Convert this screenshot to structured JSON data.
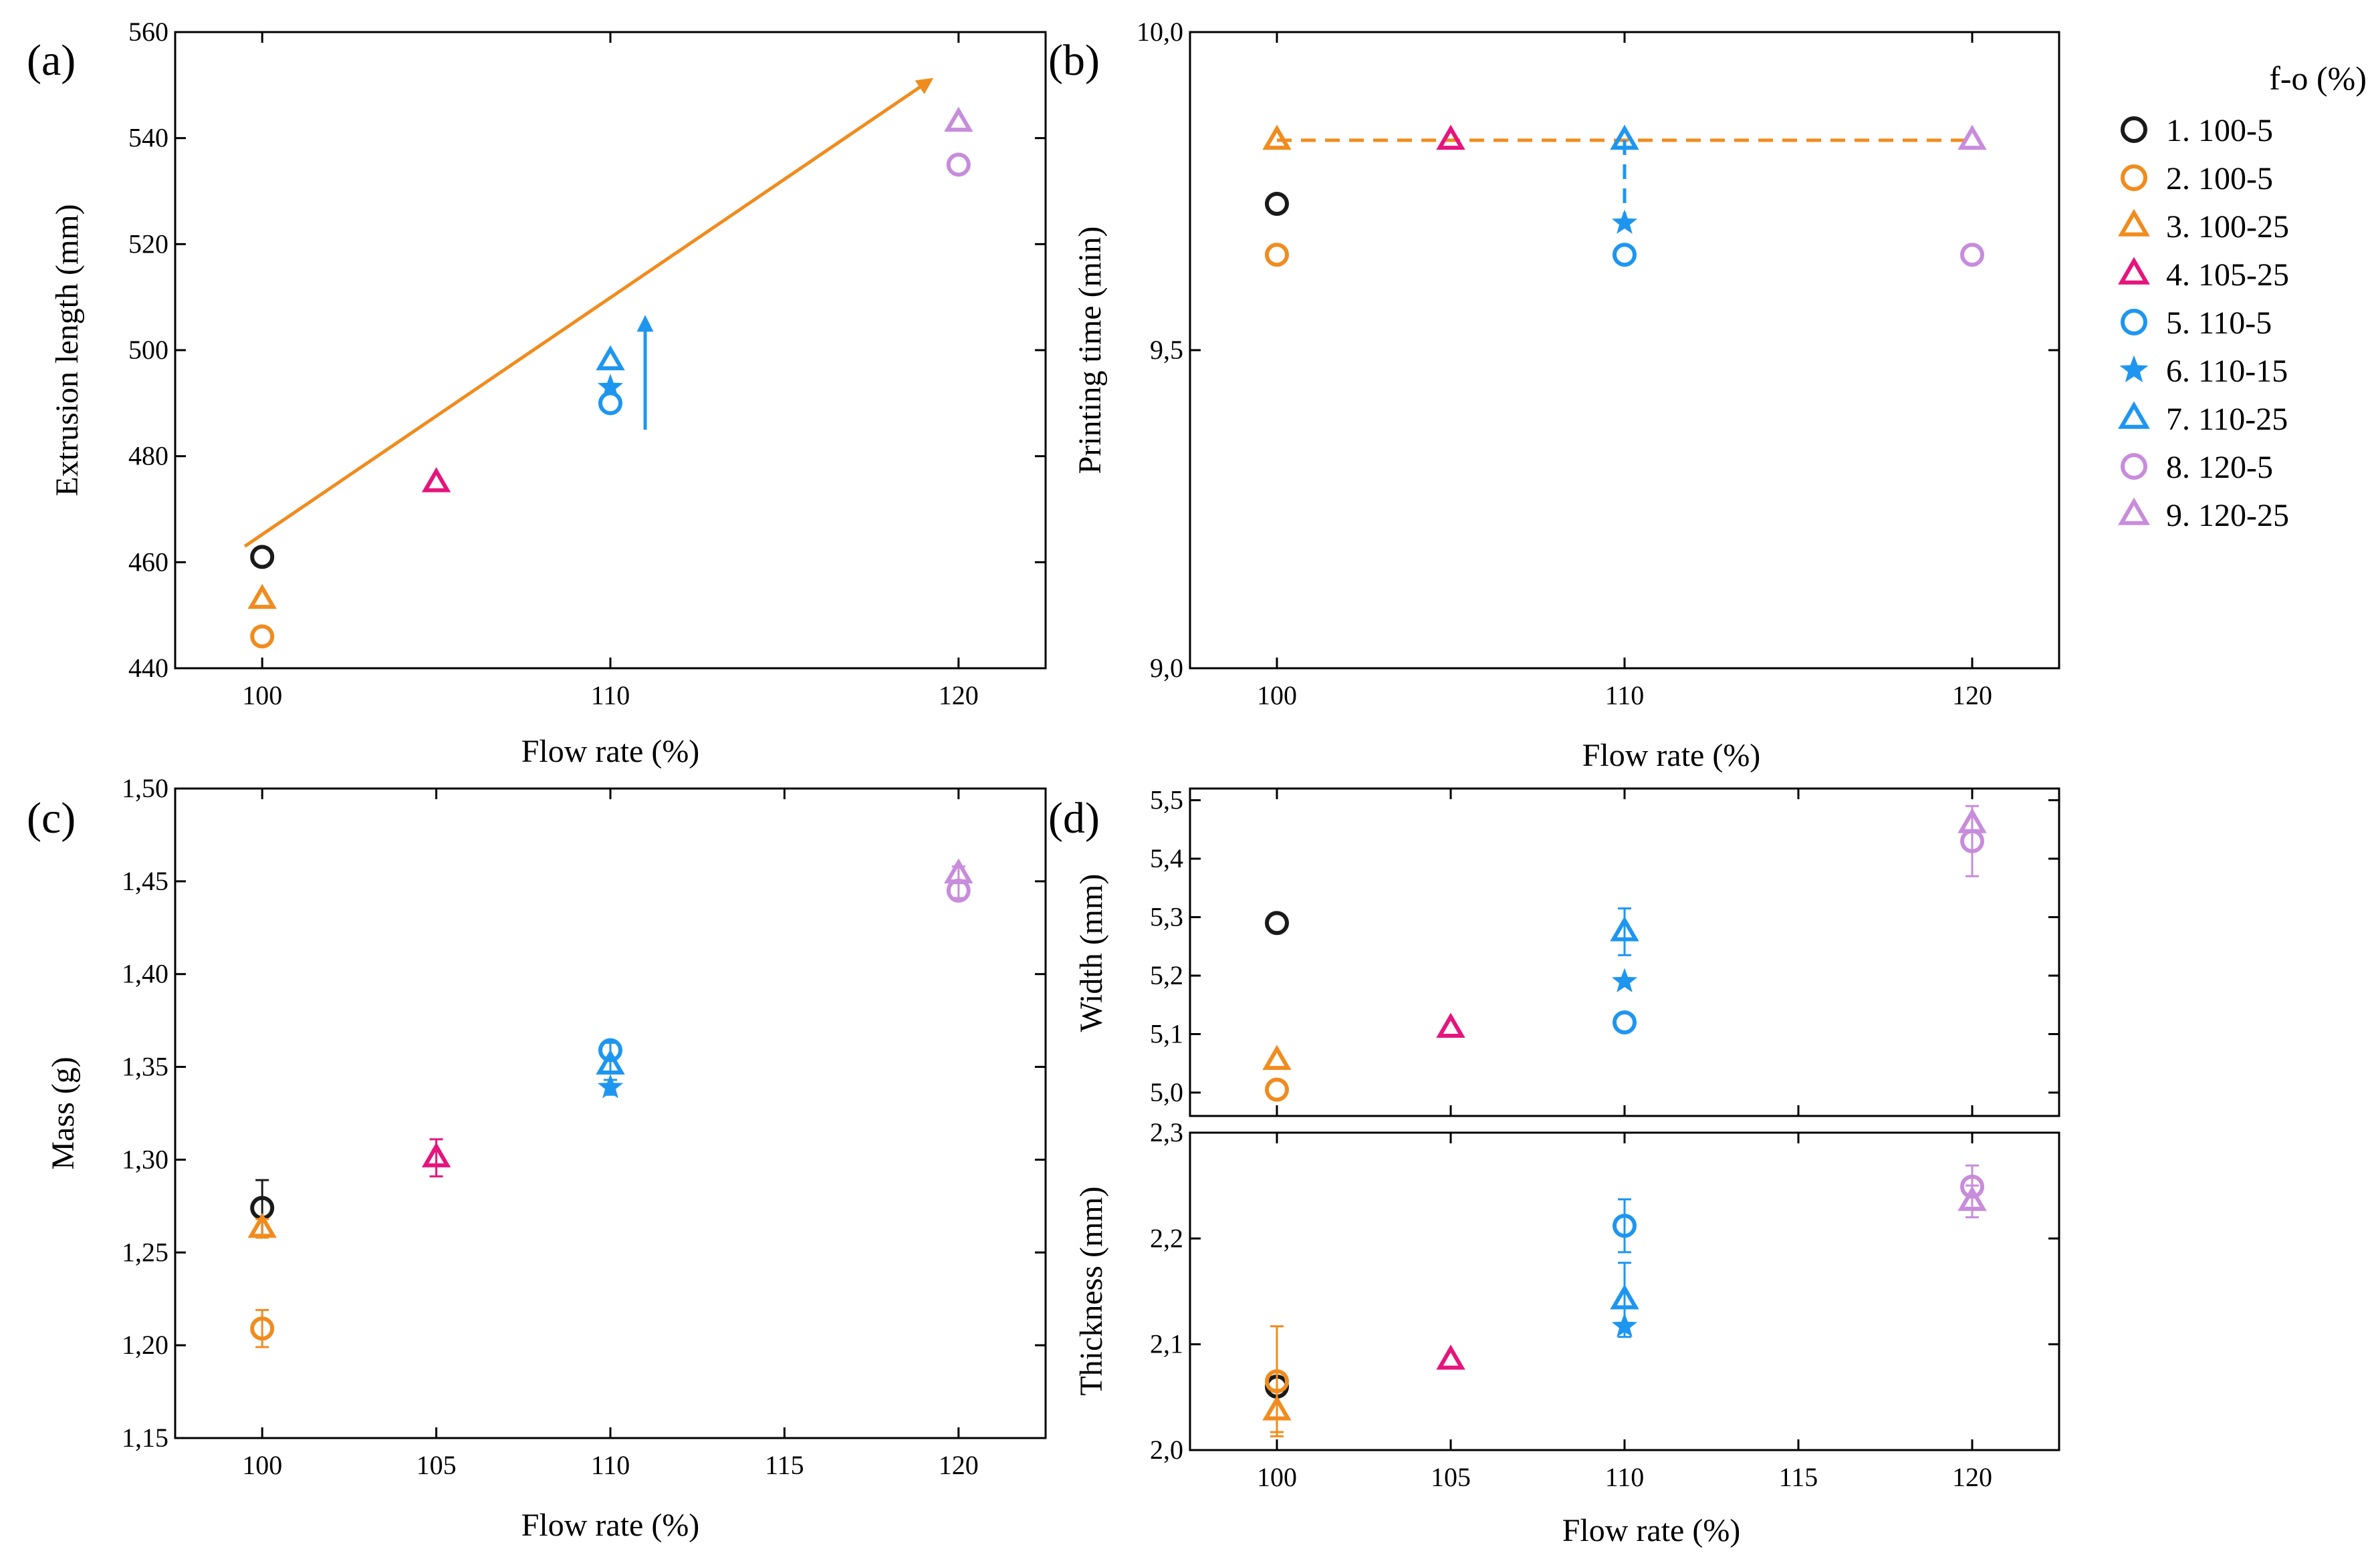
{
  "legend": {
    "title": "f-o (%)",
    "items": [
      {
        "label": "1. 100-5",
        "color": "#1a1a1a",
        "marker": "circle"
      },
      {
        "label": "2. 100-5",
        "color": "#f08c1e",
        "marker": "circle"
      },
      {
        "label": "3. 100-25",
        "color": "#f08c1e",
        "marker": "triangle"
      },
      {
        "label": "4. 105-25",
        "color": "#e6147d",
        "marker": "triangle"
      },
      {
        "label": "5. 110-5",
        "color": "#1e96f0",
        "marker": "circle"
      },
      {
        "label": "6. 110-15",
        "color": "#1e96f0",
        "marker": "star"
      },
      {
        "label": "7. 110-25",
        "color": "#1e96f0",
        "marker": "triangle"
      },
      {
        "label": "8. 120-5",
        "color": "#c88cdc",
        "marker": "circle"
      },
      {
        "label": "9. 120-25",
        "color": "#c88cdc",
        "marker": "triangle"
      }
    ]
  },
  "chart_data": [
    {
      "id": "a",
      "type": "scatter",
      "panel_label": "(a)",
      "xlabel": "Flow rate (%)",
      "ylabel": "Extrusion length (mm)",
      "xlim": [
        97.5,
        122.5
      ],
      "ylim": [
        440,
        560
      ],
      "xticks": [
        100,
        110,
        120
      ],
      "xtick_labels": [
        "100",
        "110",
        "120"
      ],
      "yticks": [
        440,
        460,
        480,
        500,
        520,
        540,
        560
      ],
      "ytick_labels": [
        "440",
        "460",
        "480",
        "500",
        "520",
        "540",
        "560"
      ],
      "points": [
        {
          "series": 1,
          "x": 100,
          "y": 461
        },
        {
          "series": 2,
          "x": 100,
          "y": 446
        },
        {
          "series": 3,
          "x": 100,
          "y": 453
        },
        {
          "series": 4,
          "x": 105,
          "y": 475
        },
        {
          "series": 5,
          "x": 110,
          "y": 490
        },
        {
          "series": 6,
          "x": 110,
          "y": 493
        },
        {
          "series": 7,
          "x": 110,
          "y": 498
        },
        {
          "series": 8,
          "x": 120,
          "y": 535
        },
        {
          "series": 9,
          "x": 120,
          "y": 543
        }
      ],
      "annotations": [
        {
          "kind": "arrow",
          "color": "#f08c1e",
          "from": [
            99.5,
            463
          ],
          "to": [
            119.2,
            551
          ]
        },
        {
          "kind": "arrow",
          "color": "#1e96f0",
          "from": [
            111,
            485
          ],
          "to": [
            111,
            506
          ]
        }
      ]
    },
    {
      "id": "b",
      "type": "scatter",
      "panel_label": "(b)",
      "xlabel": "Flow rate (%)",
      "ylabel": "Printing time (min)",
      "xlim": [
        97.5,
        122.5
      ],
      "ylim": [
        9.0,
        10.0
      ],
      "xticks": [
        100,
        110,
        120
      ],
      "xtick_labels": [
        "100",
        "110",
        "120"
      ],
      "yticks": [
        9.0,
        9.5,
        10.0
      ],
      "ytick_labels": [
        "9,0",
        "9,5",
        "10,0"
      ],
      "points": [
        {
          "series": 1,
          "x": 100,
          "y": 9.73
        },
        {
          "series": 2,
          "x": 100,
          "y": 9.65
        },
        {
          "series": 3,
          "x": 100,
          "y": 9.83
        },
        {
          "series": 4,
          "x": 105,
          "y": 9.83
        },
        {
          "series": 5,
          "x": 110,
          "y": 9.65
        },
        {
          "series": 6,
          "x": 110,
          "y": 9.7
        },
        {
          "series": 7,
          "x": 110,
          "y": 9.83
        },
        {
          "series": 8,
          "x": 120,
          "y": 9.65
        },
        {
          "series": 9,
          "x": 120,
          "y": 9.83
        }
      ],
      "annotations": [
        {
          "kind": "dashed-line",
          "color": "#f08c1e",
          "from": [
            100,
            9.83
          ],
          "to": [
            120,
            9.83
          ]
        },
        {
          "kind": "dashed-line",
          "color": "#1e96f0",
          "from": [
            110,
            9.83
          ],
          "to": [
            110,
            9.7
          ]
        }
      ]
    },
    {
      "id": "c",
      "type": "scatter",
      "panel_label": "(c)",
      "xlabel": "Flow rate (%)",
      "ylabel": "Mass (g)",
      "xlim": [
        97.5,
        122.5
      ],
      "ylim": [
        1.15,
        1.5
      ],
      "xticks": [
        100,
        105,
        110,
        115,
        120
      ],
      "xtick_labels": [
        "100",
        "105",
        "110",
        "115",
        "120"
      ],
      "yticks": [
        1.15,
        1.2,
        1.25,
        1.3,
        1.35,
        1.4,
        1.45,
        1.5
      ],
      "ytick_labels": [
        "1,15",
        "1,20",
        "1,25",
        "1,30",
        "1,35",
        "1,40",
        "1,45",
        "1,50"
      ],
      "points": [
        {
          "series": 1,
          "x": 100,
          "y": 1.274,
          "err": 0.015
        },
        {
          "series": 2,
          "x": 100,
          "y": 1.209,
          "err": 0.01
        },
        {
          "series": 3,
          "x": 100,
          "y": 1.263,
          "err": 0.005
        },
        {
          "series": 4,
          "x": 105,
          "y": 1.301,
          "err": 0.01
        },
        {
          "series": 5,
          "x": 110,
          "y": 1.359,
          "err": 0.004
        },
        {
          "series": 6,
          "x": 110,
          "y": 1.339,
          "err": 0.004
        },
        {
          "series": 7,
          "x": 110,
          "y": 1.351,
          "err": 0.004
        },
        {
          "series": 8,
          "x": 120,
          "y": 1.445,
          "err": 0.004
        },
        {
          "series": 9,
          "x": 120,
          "y": 1.454,
          "err": 0.004
        }
      ]
    },
    {
      "id": "d-top",
      "type": "scatter",
      "panel_label": "(d)",
      "xlabel": "",
      "ylabel": "Width (mm)",
      "xlim": [
        97.5,
        122.5
      ],
      "ylim": [
        4.96,
        5.52
      ],
      "xticks": [
        100,
        105,
        110,
        115,
        120
      ],
      "xtick_labels": [],
      "yticks": [
        5.0,
        5.1,
        5.2,
        5.3,
        5.4,
        5.5
      ],
      "ytick_labels": [
        "5,0",
        "5,1",
        "5,2",
        "5,3",
        "5,4",
        "5,5"
      ],
      "points": [
        {
          "series": 1,
          "x": 100,
          "y": 5.29
        },
        {
          "series": 2,
          "x": 100,
          "y": 5.005
        },
        {
          "series": 3,
          "x": 100,
          "y": 5.055
        },
        {
          "series": 4,
          "x": 105,
          "y": 5.11
        },
        {
          "series": 5,
          "x": 110,
          "y": 5.12
        },
        {
          "series": 6,
          "x": 110,
          "y": 5.19
        },
        {
          "series": 7,
          "x": 110,
          "y": 5.275,
          "err": 0.04
        },
        {
          "series": 8,
          "x": 120,
          "y": 5.43,
          "err": 0.06
        },
        {
          "series": 9,
          "x": 120,
          "y": 5.46
        }
      ]
    },
    {
      "id": "d-bottom",
      "type": "scatter",
      "panel_label": "",
      "xlabel": "Flow rate (%)",
      "ylabel": "Thickness (mm)",
      "xlim": [
        97.5,
        122.5
      ],
      "ylim": [
        2.0,
        2.3
      ],
      "xticks": [
        100,
        105,
        110,
        115,
        120
      ],
      "xtick_labels": [
        "100",
        "105",
        "110",
        "115",
        "120"
      ],
      "yticks": [
        2.0,
        2.1,
        2.2,
        2.3
      ],
      "ytick_labels": [
        "2,0",
        "2,1",
        "2,2",
        "2,3"
      ],
      "points": [
        {
          "series": 1,
          "x": 100,
          "y": 2.06
        },
        {
          "series": 2,
          "x": 100,
          "y": 2.065,
          "err": 0.052
        },
        {
          "series": 3,
          "x": 100,
          "y": 2.037,
          "err": 0.02
        },
        {
          "series": 4,
          "x": 105,
          "y": 2.085
        },
        {
          "series": 5,
          "x": 110,
          "y": 2.212,
          "err": 0.025
        },
        {
          "series": 6,
          "x": 110,
          "y": 2.117
        },
        {
          "series": 7,
          "x": 110,
          "y": 2.142,
          "err": 0.035
        },
        {
          "series": 8,
          "x": 120,
          "y": 2.249,
          "err": 0.02
        },
        {
          "series": 9,
          "x": 120,
          "y": 2.235,
          "err": 0.015
        }
      ]
    }
  ]
}
